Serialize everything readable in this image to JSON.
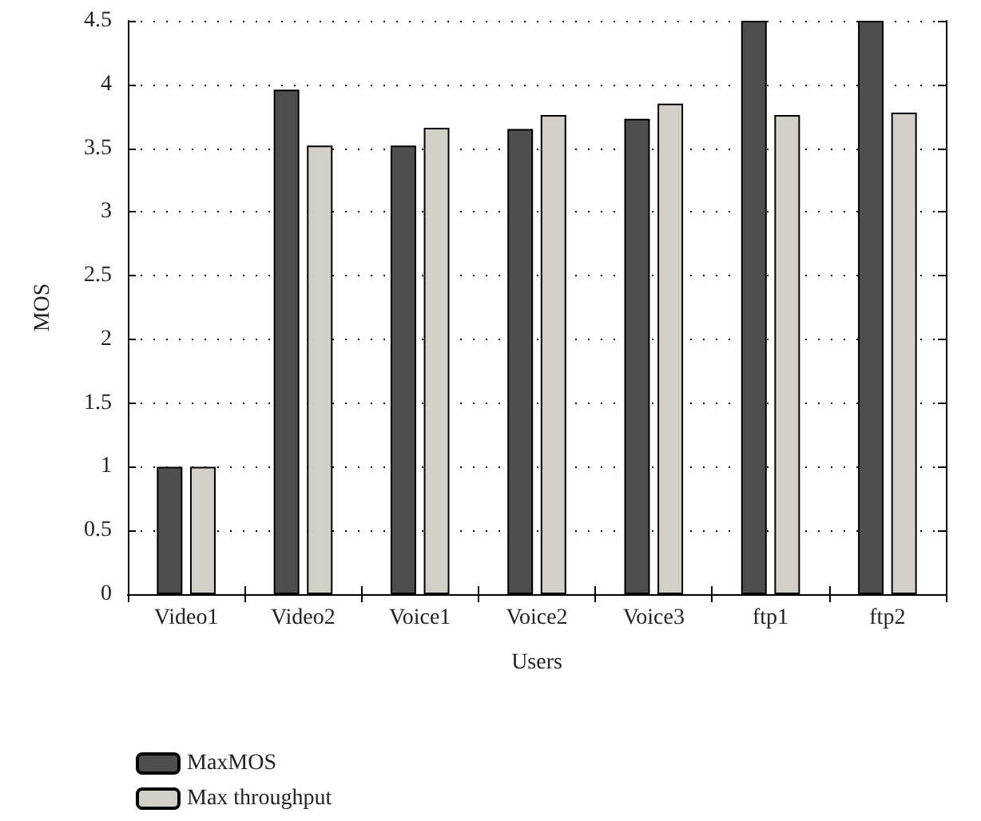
{
  "chart_data": {
    "type": "bar",
    "xlabel": "Users",
    "ylabel": "MOS",
    "categories": [
      "Video1",
      "Video2",
      "Voice1",
      "Voice2",
      "Voice3",
      "ftp1",
      "ftp2"
    ],
    "series": [
      {
        "name": "MaxMOS",
        "color": "#4d4f4d",
        "values": [
          1,
          3.96,
          3.52,
          3.65,
          3.73,
          4.5,
          4.5
        ]
      },
      {
        "name": "Max throughput",
        "color": "#d3cfc7",
        "values": [
          1,
          3.52,
          3.66,
          3.76,
          3.85,
          3.76,
          3.78
        ]
      }
    ],
    "ylim": [
      0,
      4.5
    ],
    "yticks": [
      0,
      0.5,
      1,
      1.5,
      2,
      2.5,
      3,
      3.5,
      4,
      4.5
    ],
    "grid": "y",
    "legend": "bottom left"
  }
}
